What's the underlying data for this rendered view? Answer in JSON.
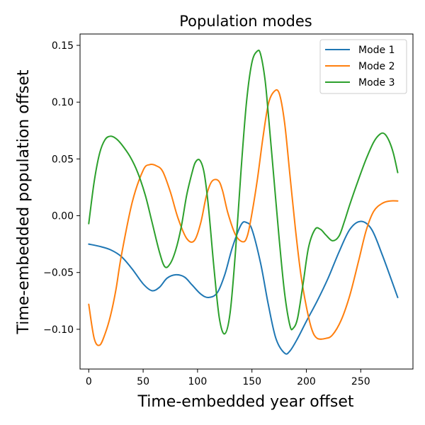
{
  "chart_data": {
    "type": "line",
    "title": "Population modes",
    "xlabel": "Time-embedded year offset",
    "ylabel": "Time-embedded population offset",
    "xlim": [
      -8,
      298
    ],
    "ylim": [
      -0.135,
      0.16
    ],
    "xticks": [
      0,
      50,
      100,
      150,
      200,
      250
    ],
    "xtick_labels": [
      "0",
      "50",
      "100",
      "150",
      "200",
      "250"
    ],
    "yticks": [
      -0.1,
      -0.05,
      0.0,
      0.05,
      0.1,
      0.15
    ],
    "ytick_labels": [
      "−0.10",
      "−0.05",
      "0.00",
      "0.05",
      "0.10",
      "0.15"
    ],
    "grid": false,
    "legend_position": "top-right",
    "series": [
      {
        "name": "Mode 1",
        "color": "#1f77b4",
        "x": [
          0,
          10,
          20,
          30,
          40,
          50,
          58,
          65,
          72,
          80,
          88,
          95,
          103,
          110,
          118,
          125,
          132,
          140,
          145,
          150,
          158,
          165,
          172,
          180,
          185,
          192,
          200,
          210,
          220,
          230,
          240,
          250,
          260,
          270,
          284
        ],
        "y": [
          -0.025,
          -0.027,
          -0.03,
          -0.036,
          -0.047,
          -0.06,
          -0.066,
          -0.063,
          -0.055,
          -0.052,
          -0.054,
          -0.061,
          -0.069,
          -0.072,
          -0.068,
          -0.052,
          -0.028,
          -0.008,
          -0.006,
          -0.012,
          -0.042,
          -0.078,
          -0.108,
          -0.121,
          -0.119,
          -0.108,
          -0.093,
          -0.075,
          -0.055,
          -0.032,
          -0.012,
          -0.005,
          -0.012,
          -0.035,
          -0.072
        ]
      },
      {
        "name": "Mode 2",
        "color": "#ff7f0e",
        "x": [
          0,
          5,
          10,
          15,
          20,
          25,
          30,
          40,
          50,
          56,
          62,
          68,
          75,
          82,
          90,
          97,
          103,
          108,
          113,
          119,
          123,
          128,
          135,
          142,
          146,
          150,
          155,
          160,
          165,
          170,
          175,
          180,
          185,
          190,
          195,
          200,
          205,
          210,
          218,
          224,
          232,
          240,
          248,
          255,
          262,
          270,
          277,
          284
        ],
        "y": [
          -0.078,
          -0.108,
          -0.114,
          -0.104,
          -0.088,
          -0.065,
          -0.035,
          0.012,
          0.04,
          0.045,
          0.044,
          0.039,
          0.021,
          -0.002,
          -0.02,
          -0.022,
          -0.006,
          0.017,
          0.03,
          0.031,
          0.022,
          0.002,
          -0.017,
          -0.023,
          -0.017,
          0.002,
          0.032,
          0.068,
          0.098,
          0.109,
          0.108,
          0.082,
          0.035,
          -0.012,
          -0.052,
          -0.08,
          -0.1,
          -0.108,
          -0.108,
          -0.105,
          -0.092,
          -0.07,
          -0.04,
          -0.013,
          0.004,
          0.011,
          0.013,
          0.013
        ]
      },
      {
        "name": "Mode 3",
        "color": "#2ca02c",
        "x": [
          0,
          5,
          10,
          15,
          20,
          25,
          30,
          38,
          45,
          52,
          58,
          65,
          70,
          75,
          80,
          85,
          90,
          95,
          98,
          102,
          106,
          110,
          115,
          120,
          125,
          130,
          135,
          140,
          145,
          150,
          155,
          158,
          162,
          165,
          170,
          175,
          180,
          185,
          188,
          192,
          197,
          202,
          208,
          213,
          218,
          224,
          230,
          235,
          240,
          248,
          255,
          262,
          268,
          272,
          276,
          280,
          284
        ],
        "y": [
          -0.007,
          0.03,
          0.055,
          0.067,
          0.07,
          0.068,
          0.063,
          0.052,
          0.038,
          0.018,
          -0.005,
          -0.032,
          -0.045,
          -0.042,
          -0.03,
          -0.01,
          0.018,
          0.038,
          0.047,
          0.049,
          0.038,
          0.008,
          -0.045,
          -0.09,
          -0.104,
          -0.085,
          -0.03,
          0.04,
          0.1,
          0.135,
          0.145,
          0.142,
          0.12,
          0.09,
          0.035,
          -0.02,
          -0.068,
          -0.097,
          -0.099,
          -0.09,
          -0.06,
          -0.028,
          -0.012,
          -0.012,
          -0.017,
          -0.022,
          -0.018,
          -0.005,
          0.01,
          0.032,
          0.05,
          0.065,
          0.072,
          0.072,
          0.066,
          0.055,
          0.038
        ]
      }
    ]
  }
}
